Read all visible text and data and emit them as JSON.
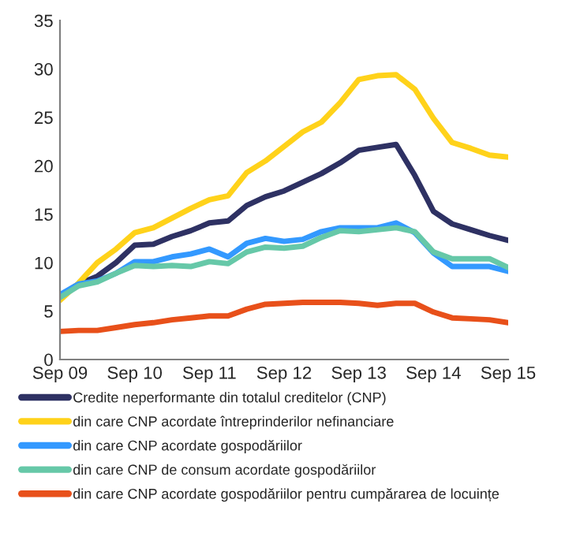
{
  "chart_data": {
    "type": "line",
    "categories": [
      "Sep 09",
      null,
      null,
      null,
      "Sep 10",
      null,
      null,
      null,
      "Sep 11",
      null,
      null,
      null,
      "Sep 12",
      null,
      null,
      null,
      "Sep 13",
      null,
      null,
      null,
      "Sep 14",
      null,
      null,
      null,
      "Sep 15"
    ],
    "series": [
      {
        "name": "Credite neperformante din totalul creditelor (CNP)",
        "color": "#2e3163",
        "values": [
          6.6,
          7.8,
          8.6,
          10.0,
          11.8,
          11.9,
          12.7,
          13.3,
          14.1,
          14.3,
          15.9,
          16.8,
          17.4,
          18.3,
          19.2,
          20.3,
          21.6,
          21.9,
          22.2,
          19.0,
          15.3,
          14.0,
          13.4,
          12.8,
          12.3
        ]
      },
      {
        "name": "din care CNP acordate întreprinderilor nefinanciare",
        "color": "#ffd21a",
        "values": [
          6.1,
          7.9,
          10.0,
          11.4,
          13.1,
          13.6,
          14.6,
          15.6,
          16.5,
          16.9,
          19.3,
          20.5,
          22.0,
          23.5,
          24.5,
          26.5,
          28.9,
          29.3,
          29.4,
          27.9,
          24.9,
          22.4,
          21.8,
          21.1,
          20.9
        ]
      },
      {
        "name": "din care CNP acordate gospodăriilor",
        "color": "#3399ff",
        "values": [
          6.7,
          7.8,
          8.1,
          8.9,
          10.1,
          10.1,
          10.6,
          10.9,
          11.4,
          10.6,
          12.0,
          12.5,
          12.2,
          12.4,
          13.2,
          13.6,
          13.6,
          13.6,
          14.1,
          13.1,
          11.0,
          9.6,
          9.6,
          9.6,
          9.1
        ]
      },
      {
        "name": "din care CNP de consum acordate gospodăriilor",
        "color": "#66c8a8",
        "values": [
          6.4,
          7.6,
          8.0,
          8.9,
          9.7,
          9.6,
          9.7,
          9.6,
          10.1,
          9.9,
          11.1,
          11.6,
          11.5,
          11.7,
          12.6,
          13.3,
          13.2,
          13.4,
          13.6,
          13.2,
          11.1,
          10.4,
          10.4,
          10.4,
          9.5
        ]
      },
      {
        "name": "din care CNP acordate gospodăriilor pentru cumpărarea de locuințe",
        "color": "#e8501a",
        "values": [
          2.9,
          3.0,
          3.0,
          3.3,
          3.6,
          3.8,
          4.1,
          4.3,
          4.5,
          4.5,
          5.2,
          5.7,
          5.8,
          5.9,
          5.9,
          5.9,
          5.8,
          5.6,
          5.8,
          5.8,
          4.9,
          4.3,
          4.2,
          4.1,
          3.8
        ]
      }
    ],
    "ylim": [
      0,
      35
    ],
    "yticks": [
      0,
      5,
      10,
      15,
      20,
      25,
      30,
      35
    ],
    "grid": false,
    "legend": "bottom",
    "line_style": "solid",
    "marker": "none"
  }
}
